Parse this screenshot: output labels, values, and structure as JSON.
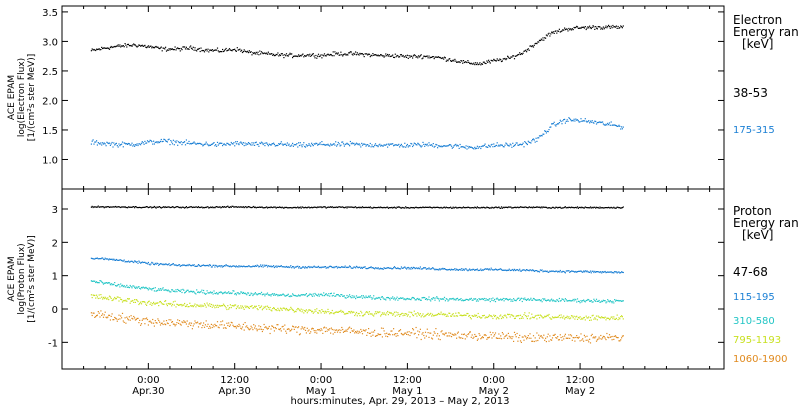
{
  "chart_data": [
    {
      "type": "scatter",
      "panel": "electron",
      "ylabel_lines": [
        "ACE EPAM",
        "log(Electron Flux)",
        "[1/(cm²s ster MeV)]"
      ],
      "ylim": [
        0.5,
        3.6
      ],
      "yticks": [
        "1.0",
        "1.5",
        "2.0",
        "2.5",
        "3.0",
        "3.5"
      ],
      "ytick_values": [
        1.0,
        1.5,
        2.0,
        2.5,
        3.0,
        3.5
      ],
      "legend_title": [
        "Electron",
        "Energy ran",
        "[keV]"
      ],
      "series": [
        {
          "name": "38-53",
          "color": "#000000",
          "x_hours": [
            -8,
            -6,
            -4,
            -2,
            0,
            2,
            4,
            6,
            8,
            10,
            12,
            14,
            16,
            18,
            20,
            22,
            24,
            26,
            28,
            30,
            32,
            34,
            36,
            38,
            40,
            42,
            44,
            46,
            48,
            50,
            52,
            54,
            56,
            58,
            60,
            62,
            64,
            66
          ],
          "values": [
            2.85,
            2.9,
            2.93,
            2.95,
            2.92,
            2.88,
            2.88,
            2.9,
            2.86,
            2.85,
            2.88,
            2.82,
            2.8,
            2.78,
            2.77,
            2.78,
            2.77,
            2.8,
            2.8,
            2.79,
            2.77,
            2.77,
            2.75,
            2.76,
            2.74,
            2.7,
            2.65,
            2.63,
            2.68,
            2.72,
            2.82,
            3.0,
            3.15,
            3.22,
            3.24,
            3.25,
            3.25,
            3.25
          ],
          "spread": 0.05
        },
        {
          "name": "175-315",
          "color": "#1a7fd4",
          "x_hours": [
            -8,
            -6,
            -4,
            -2,
            0,
            2,
            4,
            6,
            8,
            10,
            12,
            14,
            16,
            18,
            20,
            22,
            24,
            26,
            28,
            30,
            32,
            34,
            36,
            38,
            40,
            42,
            44,
            46,
            48,
            50,
            52,
            54,
            56,
            58,
            60,
            62,
            64,
            66
          ],
          "values": [
            1.3,
            1.28,
            1.26,
            1.27,
            1.3,
            1.32,
            1.3,
            1.28,
            1.27,
            1.26,
            1.28,
            1.27,
            1.26,
            1.27,
            1.25,
            1.25,
            1.27,
            1.26,
            1.27,
            1.25,
            1.26,
            1.25,
            1.25,
            1.26,
            1.25,
            1.24,
            1.22,
            1.22,
            1.25,
            1.25,
            1.27,
            1.35,
            1.58,
            1.68,
            1.67,
            1.64,
            1.6,
            1.56
          ],
          "spread": 0.06
        }
      ]
    },
    {
      "type": "scatter",
      "panel": "proton",
      "ylabel_lines": [
        "ACE EPAM",
        "log(Proton Flux)",
        "[1/(cm²s ster MeV)]"
      ],
      "ylim": [
        -1.8,
        3.6
      ],
      "yticks": [
        "-1",
        "0",
        "1",
        "2",
        "3"
      ],
      "ytick_values": [
        -1,
        0,
        1,
        2,
        3
      ],
      "legend_title": [
        "Proton",
        "Energy ran",
        "[keV]"
      ],
      "series": [
        {
          "name": "47-68",
          "color": "#000000",
          "x_hours": [
            -8,
            -4,
            0,
            4,
            8,
            12,
            16,
            20,
            24,
            28,
            32,
            36,
            40,
            44,
            48,
            52,
            56,
            60,
            64,
            66
          ],
          "values": [
            3.08,
            3.08,
            3.07,
            3.07,
            3.07,
            3.08,
            3.07,
            3.06,
            3.07,
            3.07,
            3.06,
            3.06,
            3.06,
            3.06,
            3.06,
            3.07,
            3.06,
            3.06,
            3.06,
            3.06
          ],
          "spread": 0.03
        },
        {
          "name": "115-195",
          "color": "#1a7fd4",
          "x_hours": [
            -8,
            -4,
            0,
            4,
            8,
            12,
            16,
            20,
            24,
            28,
            32,
            36,
            40,
            44,
            48,
            52,
            56,
            60,
            64,
            66
          ],
          "values": [
            1.55,
            1.48,
            1.38,
            1.33,
            1.32,
            1.3,
            1.3,
            1.28,
            1.27,
            1.27,
            1.25,
            1.25,
            1.22,
            1.2,
            1.2,
            1.18,
            1.15,
            1.14,
            1.12,
            1.12
          ],
          "spread": 0.05
        },
        {
          "name": "310-580",
          "color": "#22c5c5",
          "x_hours": [
            -8,
            -4,
            0,
            4,
            8,
            12,
            16,
            20,
            24,
            28,
            32,
            36,
            40,
            44,
            48,
            52,
            56,
            60,
            64,
            66
          ],
          "values": [
            0.85,
            0.72,
            0.62,
            0.55,
            0.52,
            0.5,
            0.45,
            0.42,
            0.45,
            0.4,
            0.35,
            0.33,
            0.32,
            0.3,
            0.3,
            0.3,
            0.28,
            0.27,
            0.26,
            0.25
          ],
          "spread": 0.08
        },
        {
          "name": "795-1193",
          "color": "#c8e020",
          "x_hours": [
            -8,
            -4,
            0,
            4,
            8,
            12,
            16,
            20,
            24,
            28,
            32,
            36,
            40,
            44,
            48,
            52,
            56,
            60,
            64,
            66
          ],
          "values": [
            0.4,
            0.3,
            0.2,
            0.15,
            0.12,
            0.08,
            0.05,
            0.0,
            -0.05,
            -0.1,
            -0.12,
            -0.15,
            -0.15,
            -0.18,
            -0.2,
            -0.2,
            -0.22,
            -0.25,
            -0.25,
            -0.25
          ],
          "spread": 0.12
        },
        {
          "name": "1060-1900",
          "color": "#e08a1e",
          "x_hours": [
            -8,
            -4,
            0,
            4,
            8,
            12,
            16,
            20,
            24,
            28,
            32,
            36,
            40,
            44,
            48,
            52,
            56,
            60,
            64,
            66
          ],
          "values": [
            -0.1,
            -0.25,
            -0.35,
            -0.4,
            -0.45,
            -0.5,
            -0.55,
            -0.6,
            -0.6,
            -0.65,
            -0.7,
            -0.7,
            -0.75,
            -0.78,
            -0.8,
            -0.85,
            -0.85,
            -0.85,
            -0.85,
            -0.85
          ],
          "spread": 0.2
        }
      ]
    }
  ],
  "x_axis": {
    "xlim_hours": [
      -12,
      80
    ],
    "ticks": [
      {
        "hour": 0,
        "time": "0:00",
        "date": "Apr.30"
      },
      {
        "hour": 12,
        "time": "12:00",
        "date": "Apr.30"
      },
      {
        "hour": 24,
        "time": "0:00",
        "date": "May 1"
      },
      {
        "hour": 36,
        "time": "12:00",
        "date": "May 1"
      },
      {
        "hour": 48,
        "time": "0:00",
        "date": "May 2"
      },
      {
        "hour": 60,
        "time": "12:00",
        "date": "May 2"
      }
    ],
    "label": "hours:minutes, Apr. 29, 2013 – May  2, 2013"
  }
}
